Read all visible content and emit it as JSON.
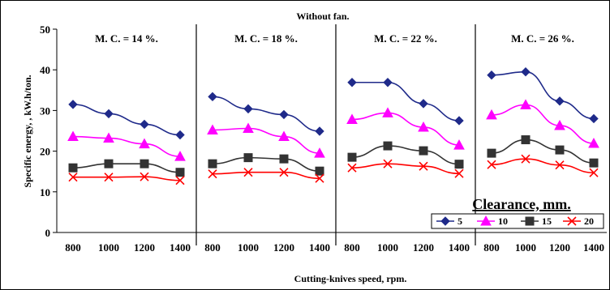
{
  "chart_data": {
    "type": "line",
    "title": "Without fan.",
    "xlabel": "Cutting-knives speed, rpm.",
    "ylabel": "Specific energy, , kW.h/ton.",
    "ylim": [
      0,
      50
    ],
    "yticks": [
      0,
      10,
      20,
      30,
      40,
      50
    ],
    "grid": false,
    "legend_title": "Clearance, mm.",
    "legend_placement": "bottom-right",
    "panels": [
      {
        "label": "M. C. = 14 %.",
        "categories": [
          "800",
          "1000",
          "1200",
          "1400"
        ],
        "series": [
          {
            "name": "5",
            "values": [
              31.5,
              29.2,
              26.6,
              24.0
            ]
          },
          {
            "name": "10",
            "values": [
              23.6,
              23.2,
              21.8,
              18.7
            ]
          },
          {
            "name": "15",
            "values": [
              15.9,
              16.9,
              16.9,
              14.8
            ]
          },
          {
            "name": "20",
            "values": [
              13.6,
              13.6,
              13.7,
              12.8
            ]
          }
        ]
      },
      {
        "label": "M. C. = 18 %.",
        "categories": [
          "800",
          "1000",
          "1200",
          "1400"
        ],
        "series": [
          {
            "name": "5",
            "values": [
              33.4,
              30.4,
              29.0,
              24.9
            ]
          },
          {
            "name": "10",
            "values": [
              25.2,
              25.6,
              23.6,
              19.5
            ]
          },
          {
            "name": "15",
            "values": [
              16.9,
              18.4,
              18.1,
              15.1
            ]
          },
          {
            "name": "20",
            "values": [
              14.4,
              14.8,
              14.8,
              13.3
            ]
          }
        ]
      },
      {
        "label": "M. C. = 22 %.",
        "categories": [
          "800",
          "1000",
          "1200",
          "1400"
        ],
        "series": [
          {
            "name": "5",
            "values": [
              36.9,
              36.9,
              31.7,
              27.5
            ]
          },
          {
            "name": "10",
            "values": [
              27.8,
              29.4,
              25.9,
              21.5
            ]
          },
          {
            "name": "15",
            "values": [
              18.5,
              21.3,
              20.1,
              16.8
            ]
          },
          {
            "name": "20",
            "values": [
              15.9,
              16.9,
              16.3,
              14.5
            ]
          }
        ]
      },
      {
        "label": "M. C. = 26 %.",
        "categories": [
          "800",
          "1000",
          "1200",
          "1400"
        ],
        "series": [
          {
            "name": "5",
            "values": [
              38.7,
              39.5,
              32.3,
              28.0
            ]
          },
          {
            "name": "10",
            "values": [
              28.9,
              31.4,
              26.3,
              21.9
            ]
          },
          {
            "name": "15",
            "values": [
              19.5,
              22.8,
              20.3,
              17.1
            ]
          },
          {
            "name": "20",
            "values": [
              16.7,
              18.1,
              16.6,
              14.7
            ]
          }
        ]
      }
    ],
    "series_styles": [
      {
        "name": "5",
        "color": "#1f2a8a",
        "marker": "diamond"
      },
      {
        "name": "10",
        "color": "#ff00ff",
        "marker": "triangle"
      },
      {
        "name": "15",
        "color": "#333333",
        "marker": "square"
      },
      {
        "name": "20",
        "color": "#ff0000",
        "marker": "x"
      }
    ]
  }
}
